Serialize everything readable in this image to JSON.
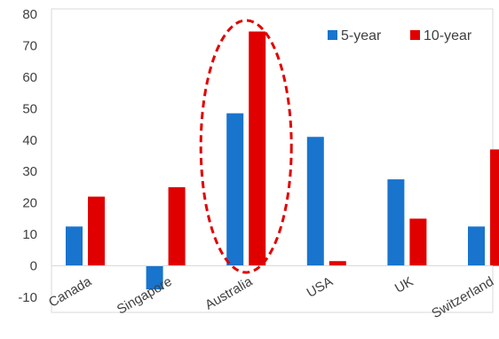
{
  "chart_data": {
    "type": "bar",
    "title": "",
    "xlabel": "",
    "ylabel": "",
    "categories": [
      "Canada",
      "Singapore",
      "Australia",
      "USA",
      "UK",
      "Switzerland"
    ],
    "series": [
      {
        "name": "5-year",
        "color": "#1874CD",
        "values": [
          12.5,
          -7.5,
          48.5,
          41.0,
          27.5,
          12.5
        ]
      },
      {
        "name": "10-year",
        "color": "#E00000",
        "values": [
          22.0,
          25.0,
          74.5,
          1.5,
          15.0,
          37.0
        ]
      }
    ],
    "ylim": [
      -10,
      80
    ],
    "yticks": [
      -10,
      0,
      10,
      20,
      30,
      40,
      50,
      60,
      70,
      80
    ],
    "grid": false,
    "legend_position": "top-right",
    "highlight": {
      "category": "Australia",
      "shape": "ellipse",
      "style": "dashed",
      "color": "#E00000"
    }
  }
}
